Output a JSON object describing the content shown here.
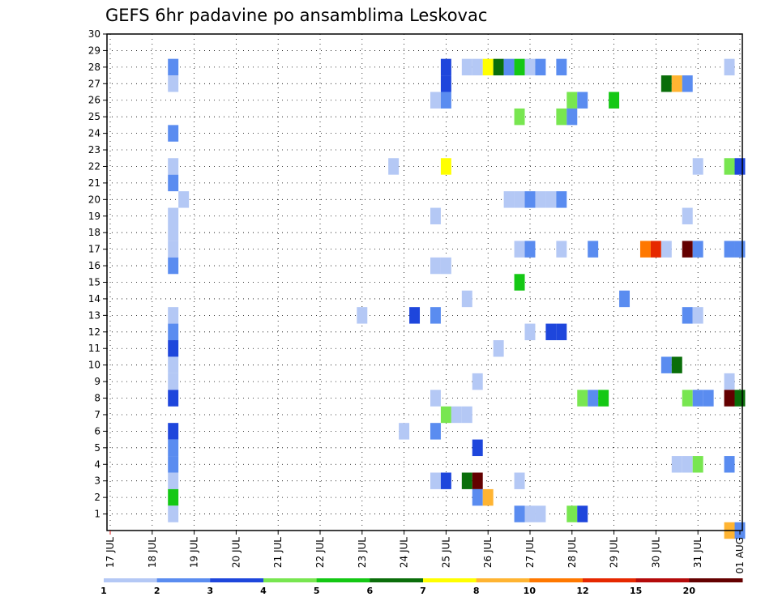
{
  "chart_data": {
    "type": "heatmap",
    "title": "GEFS 6hr padavine po ansamblima Leskovac",
    "y_ticks": [
      "1",
      "2",
      "3",
      "4",
      "5",
      "6",
      "7",
      "8",
      "9",
      "10",
      "11",
      "12",
      "13",
      "14",
      "15",
      "16",
      "17",
      "18",
      "19",
      "20",
      "21",
      "22",
      "23",
      "24",
      "25",
      "26",
      "27",
      "28",
      "29",
      "30"
    ],
    "ylim": [
      0,
      30
    ],
    "x_ticks": [
      "17 JUL",
      "18 JUL",
      "19 JUL",
      "20 JUL",
      "21 JUL",
      "22 JUL",
      "23 JUL",
      "24 JUL",
      "25 JUL",
      "26 JUL",
      "27 JUL",
      "28 JUL",
      "29 JUL",
      "30 JUL",
      "31 JUL",
      "01 AUG"
    ],
    "time_step_hours": 6,
    "grid": true,
    "legend": {
      "position": "bottom",
      "labels": [
        "1",
        "2",
        "3",
        "4",
        "5",
        "6",
        "7",
        "8",
        "10",
        "12",
        "15",
        "20"
      ],
      "colors": [
        "#b4c8f5",
        "#5a8cf0",
        "#1e46dc",
        "#78e650",
        "#14c814",
        "#0a6e0a",
        "#ffff00",
        "#ffb432",
        "#ff7800",
        "#e62800",
        "#b40a0a",
        "#640000"
      ]
    },
    "cells_note": "Each cell: member (y), 6-hour step index t from 00z 17 JUL (x), precipitation class index into legend colors",
    "cells": [
      {
        "member": 28,
        "t": 6,
        "c": 1
      },
      {
        "member": 27,
        "t": 6,
        "c": 0
      },
      {
        "member": 24,
        "t": 6,
        "c": 1
      },
      {
        "member": 22,
        "t": 6,
        "c": 0
      },
      {
        "member": 21,
        "t": 6,
        "c": 1
      },
      {
        "member": 20,
        "t": 7,
        "c": 0
      },
      {
        "member": 19,
        "t": 6,
        "c": 0
      },
      {
        "member": 18,
        "t": 6,
        "c": 0
      },
      {
        "member": 17,
        "t": 6,
        "c": 0
      },
      {
        "member": 16,
        "t": 6,
        "c": 1
      },
      {
        "member": 13,
        "t": 6,
        "c": 0
      },
      {
        "member": 12,
        "t": 6,
        "c": 1
      },
      {
        "member": 11,
        "t": 6,
        "c": 2
      },
      {
        "member": 10,
        "t": 6,
        "c": 0
      },
      {
        "member": 9,
        "t": 6,
        "c": 0
      },
      {
        "member": 8,
        "t": 6,
        "c": 2
      },
      {
        "member": 6,
        "t": 6,
        "c": 2
      },
      {
        "member": 5,
        "t": 6,
        "c": 1
      },
      {
        "member": 4,
        "t": 6,
        "c": 1
      },
      {
        "member": 3,
        "t": 6,
        "c": 0
      },
      {
        "member": 2,
        "t": 6,
        "c": 4
      },
      {
        "member": 1,
        "t": 6,
        "c": 0
      },
      {
        "member": 28,
        "t": 32,
        "c": 2
      },
      {
        "member": 27,
        "t": 32,
        "c": 2
      },
      {
        "member": 26,
        "t": 31,
        "c": 0
      },
      {
        "member": 26,
        "t": 32,
        "c": 1
      },
      {
        "member": 28,
        "t": 34,
        "c": 0
      },
      {
        "member": 28,
        "t": 35,
        "c": 0
      },
      {
        "member": 28,
        "t": 36,
        "c": 6
      },
      {
        "member": 28,
        "t": 37,
        "c": 5
      },
      {
        "member": 28,
        "t": 38,
        "c": 1
      },
      {
        "member": 28,
        "t": 39,
        "c": 4
      },
      {
        "member": 28,
        "t": 40,
        "c": 0
      },
      {
        "member": 28,
        "t": 41,
        "c": 1
      },
      {
        "member": 28,
        "t": 43,
        "c": 1
      },
      {
        "member": 28,
        "t": 59,
        "c": 0
      },
      {
        "member": 27,
        "t": 53,
        "c": 5
      },
      {
        "member": 27,
        "t": 54,
        "c": 7
      },
      {
        "member": 27,
        "t": 55,
        "c": 1
      },
      {
        "member": 26,
        "t": 44,
        "c": 3
      },
      {
        "member": 26,
        "t": 45,
        "c": 1
      },
      {
        "member": 26,
        "t": 48,
        "c": 4
      },
      {
        "member": 25,
        "t": 39,
        "c": 3
      },
      {
        "member": 25,
        "t": 43,
        "c": 3
      },
      {
        "member": 25,
        "t": 44,
        "c": 1
      },
      {
        "member": 22,
        "t": 27,
        "c": 0
      },
      {
        "member": 22,
        "t": 32,
        "c": 6
      },
      {
        "member": 22,
        "t": 56,
        "c": 0
      },
      {
        "member": 22,
        "t": 59,
        "c": 3
      },
      {
        "member": 22,
        "t": 60,
        "c": 2
      },
      {
        "member": 20,
        "t": 38,
        "c": 0
      },
      {
        "member": 20,
        "t": 39,
        "c": 0
      },
      {
        "member": 20,
        "t": 40,
        "c": 1
      },
      {
        "member": 20,
        "t": 41,
        "c": 0
      },
      {
        "member": 20,
        "t": 42,
        "c": 0
      },
      {
        "member": 20,
        "t": 43,
        "c": 1
      },
      {
        "member": 19,
        "t": 31,
        "c": 0
      },
      {
        "member": 19,
        "t": 55,
        "c": 0
      },
      {
        "member": 17,
        "t": 39,
        "c": 0
      },
      {
        "member": 17,
        "t": 40,
        "c": 1
      },
      {
        "member": 17,
        "t": 43,
        "c": 0
      },
      {
        "member": 17,
        "t": 46,
        "c": 1
      },
      {
        "member": 17,
        "t": 51,
        "c": 8
      },
      {
        "member": 17,
        "t": 52,
        "c": 9
      },
      {
        "member": 17,
        "t": 53,
        "c": 0
      },
      {
        "member": 17,
        "t": 55,
        "c": 11
      },
      {
        "member": 17,
        "t": 56,
        "c": 1
      },
      {
        "member": 17,
        "t": 59,
        "c": 1
      },
      {
        "member": 17,
        "t": 60,
        "c": 1
      },
      {
        "member": 16,
        "t": 31,
        "c": 0
      },
      {
        "member": 16,
        "t": 32,
        "c": 0
      },
      {
        "member": 15,
        "t": 39,
        "c": 4
      },
      {
        "member": 14,
        "t": 34,
        "c": 0
      },
      {
        "member": 14,
        "t": 49,
        "c": 1
      },
      {
        "member": 13,
        "t": 24,
        "c": 0
      },
      {
        "member": 13,
        "t": 29,
        "c": 2
      },
      {
        "member": 13,
        "t": 31,
        "c": 1
      },
      {
        "member": 13,
        "t": 55,
        "c": 1
      },
      {
        "member": 13,
        "t": 56,
        "c": 0
      },
      {
        "member": 12,
        "t": 40,
        "c": 0
      },
      {
        "member": 12,
        "t": 42,
        "c": 2
      },
      {
        "member": 12,
        "t": 43,
        "c": 2
      },
      {
        "member": 11,
        "t": 37,
        "c": 0
      },
      {
        "member": 10,
        "t": 53,
        "c": 1
      },
      {
        "member": 10,
        "t": 54,
        "c": 5
      },
      {
        "member": 9,
        "t": 35,
        "c": 0
      },
      {
        "member": 9,
        "t": 59,
        "c": 0
      },
      {
        "member": 8,
        "t": 31,
        "c": 0
      },
      {
        "member": 8,
        "t": 45,
        "c": 3
      },
      {
        "member": 8,
        "t": 46,
        "c": 1
      },
      {
        "member": 8,
        "t": 47,
        "c": 4
      },
      {
        "member": 8,
        "t": 55,
        "c": 3
      },
      {
        "member": 8,
        "t": 56,
        "c": 1
      },
      {
        "member": 8,
        "t": 57,
        "c": 1
      },
      {
        "member": 8,
        "t": 59,
        "c": 11
      },
      {
        "member": 8,
        "t": 60,
        "c": 5
      },
      {
        "member": 7,
        "t": 32,
        "c": 3
      },
      {
        "member": 7,
        "t": 33,
        "c": 0
      },
      {
        "member": 7,
        "t": 34,
        "c": 0
      },
      {
        "member": 6,
        "t": 28,
        "c": 0
      },
      {
        "member": 6,
        "t": 31,
        "c": 1
      },
      {
        "member": 5,
        "t": 35,
        "c": 2
      },
      {
        "member": 4,
        "t": 54,
        "c": 0
      },
      {
        "member": 4,
        "t": 55,
        "c": 0
      },
      {
        "member": 4,
        "t": 56,
        "c": 3
      },
      {
        "member": 4,
        "t": 59,
        "c": 1
      },
      {
        "member": 3,
        "t": 31,
        "c": 0
      },
      {
        "member": 3,
        "t": 32,
        "c": 2
      },
      {
        "member": 3,
        "t": 34,
        "c": 5
      },
      {
        "member": 3,
        "t": 35,
        "c": 11
      },
      {
        "member": 3,
        "t": 39,
        "c": 0
      },
      {
        "member": 2,
        "t": 35,
        "c": 1
      },
      {
        "member": 2,
        "t": 36,
        "c": 7
      },
      {
        "member": 1,
        "t": 39,
        "c": 1
      },
      {
        "member": 1,
        "t": 40,
        "c": 0
      },
      {
        "member": 1,
        "t": 41,
        "c": 0
      },
      {
        "member": 1,
        "t": 44,
        "c": 3
      },
      {
        "member": 1,
        "t": 45,
        "c": 2
      },
      {
        "member": 0,
        "t": 59,
        "c": 7
      },
      {
        "member": 0,
        "t": 60,
        "c": 1
      }
    ]
  }
}
